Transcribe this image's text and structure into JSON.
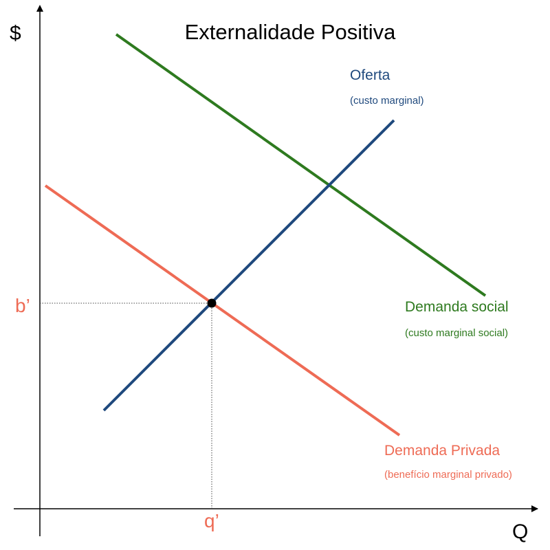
{
  "title": "Externalidade Positiva",
  "axes": {
    "y_label": "$",
    "x_label": "Q"
  },
  "points": {
    "price_label": "b’",
    "quantity_label": "q’"
  },
  "curves": {
    "supply": {
      "name": "Oferta",
      "subtitle": "(custo marginal)",
      "color": "#1f497d"
    },
    "social_demand": {
      "name": "Demanda social",
      "subtitle": "(custo marginal social)",
      "color": "#2e7a1f"
    },
    "private_demand": {
      "name": "Demanda Privada",
      "subtitle": "(benefício marginal privado)",
      "color": "#ee6b55"
    }
  },
  "colors": {
    "axis": "#000000",
    "guide": "#444444",
    "equilibrium": "#000000"
  }
}
